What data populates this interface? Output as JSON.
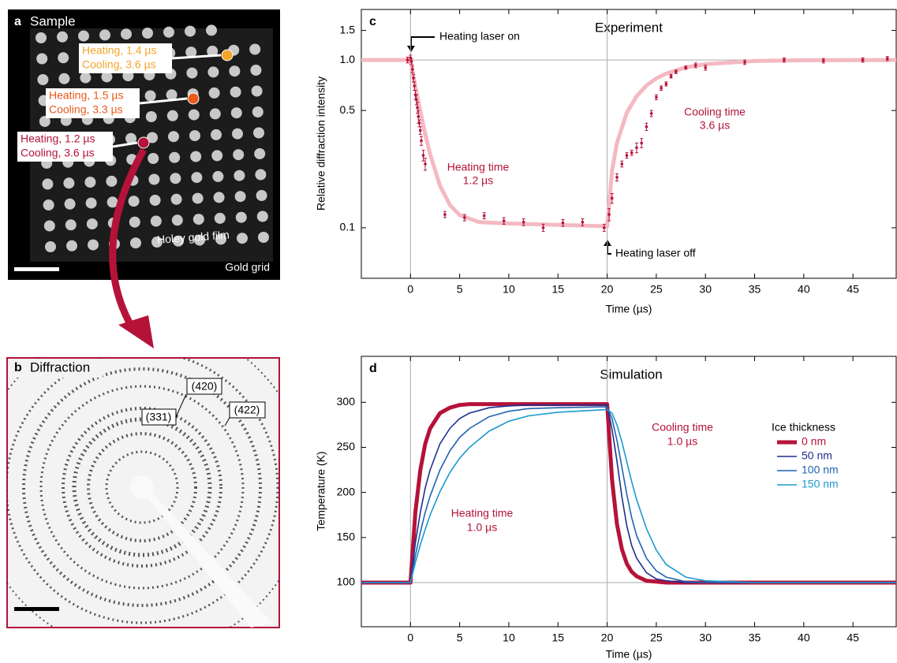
{
  "panels": {
    "a": {
      "letter": "a",
      "title": "Sample",
      "callouts": [
        {
          "lines": [
            "Heating, 1.4 µs",
            "Cooling, 3.6 µs"
          ],
          "color": "#f4a52a"
        },
        {
          "lines": [
            "Heating, 1.5 µs",
            "Cooling, 3.3 µs"
          ],
          "color": "#ea5a1a"
        },
        {
          "lines": [
            "Heating, 1.2 µs",
            "Cooling, 3.6 µs"
          ],
          "color": "#b5123a"
        }
      ],
      "labels": [
        "Holey gold film",
        "Gold grid"
      ]
    },
    "b": {
      "letter": "b",
      "title": "Diffraction",
      "labels": [
        "(420)",
        "(331)",
        "(422)"
      ]
    }
  },
  "chart_data": [
    {
      "type": "scatter",
      "letter": "c",
      "title": "Experiment",
      "xlabel": "Time (µs)",
      "ylabel": "Relative diffraction intensity",
      "xlim": [
        -5,
        49.4
      ],
      "xticks": [
        0,
        5,
        10,
        15,
        20,
        25,
        30,
        35,
        40,
        45
      ],
      "ylim": [
        0.05,
        2.0
      ],
      "yscale": "log",
      "yticks": [
        0.1,
        0.5,
        {
          "value": 1,
          "label": "1.0"
        },
        1.5
      ],
      "vlines": [
        0,
        20
      ],
      "hlines": [
        1
      ],
      "annotations": [
        "Heating laser on",
        "Heating laser off",
        "Heating time",
        "1.2 µs",
        "Cooling time",
        "3.6 µs"
      ],
      "series": [
        {
          "type": "line",
          "color": "#f4b9c2",
          "linewidth": 5,
          "x": [
            -5,
            0,
            0.5,
            1,
            1.5,
            2,
            3,
            4,
            5,
            7,
            10,
            15,
            20,
            20.5,
            21,
            22,
            23,
            24,
            25,
            26,
            28,
            30,
            35,
            40,
            49.4
          ],
          "values": [
            1,
            1,
            0.695,
            0.494,
            0.362,
            0.274,
            0.178,
            0.137,
            0.119,
            0.108,
            0.106,
            0.104,
            0.102,
            0.219,
            0.32,
            0.485,
            0.609,
            0.705,
            0.776,
            0.83,
            0.903,
            0.944,
            0.986,
            0.996,
            1.0
          ]
        },
        {
          "type": "scatter",
          "color": "#b5123a",
          "x": [
            -0.3,
            0,
            0.1,
            0.2,
            0.3,
            0.4,
            0.5,
            0.6,
            0.7,
            0.8,
            0.9,
            1.0,
            1.1,
            1.3,
            1.5,
            3.5,
            5.5,
            7.5,
            9.5,
            11.5,
            13.5,
            15.5,
            17.5,
            19.7,
            20.2,
            20.5,
            21,
            21.5,
            22,
            22.5,
            23,
            23.5,
            24,
            24.5,
            25,
            25.5,
            26,
            26.5,
            27,
            28,
            29,
            30,
            34,
            38,
            42,
            46,
            48.5
          ],
          "values": [
            1.0,
            1.03,
            0.98,
            0.88,
            0.78,
            0.7,
            0.62,
            0.58,
            0.52,
            0.46,
            0.42,
            0.38,
            0.33,
            0.27,
            0.24,
            0.12,
            0.115,
            0.118,
            0.11,
            0.108,
            0.1,
            0.107,
            0.108,
            0.1,
            0.12,
            0.15,
            0.2,
            0.24,
            0.27,
            0.28,
            0.3,
            0.32,
            0.4,
            0.48,
            0.6,
            0.68,
            0.72,
            0.8,
            0.85,
            0.9,
            0.93,
            0.9,
            0.97,
            1.0,
            0.99,
            1.0,
            1.02
          ],
          "errors": [
            0.04,
            0.04,
            0.04,
            0.04,
            0.04,
            0.04,
            0.04,
            0.04,
            0.04,
            0.04,
            0.02,
            0.02,
            0.02,
            0.02,
            0.02,
            0.005,
            0.005,
            0.005,
            0.005,
            0.005,
            0.005,
            0.005,
            0.005,
            0.005,
            0.01,
            0.01,
            0.01,
            0.01,
            0.01,
            0.01,
            0.02,
            0.02,
            0.02,
            0.02,
            0.02,
            0.02,
            0.02,
            0.02,
            0.02,
            0.02,
            0.03,
            0.03,
            0.03,
            0.03,
            0.03,
            0.03,
            0.03
          ]
        }
      ]
    },
    {
      "type": "line",
      "letter": "d",
      "title": "Simulation",
      "xlabel": "Time (µs)",
      "ylabel": "Temperature (K)",
      "xlim": [
        -5,
        49.4
      ],
      "xticks": [
        0,
        5,
        10,
        15,
        20,
        25,
        30,
        35,
        40,
        45
      ],
      "ylim": [
        51,
        351
      ],
      "yticks": [
        100,
        150,
        200,
        250,
        300
      ],
      "vlines": [
        0,
        20
      ],
      "hlines": [
        100
      ],
      "legend_title": "Ice thickness",
      "annotations": [
        "Cooling time",
        "1.0 µs",
        "Heating time",
        "1.0 µs"
      ],
      "x": [
        -5,
        0,
        0.5,
        1,
        1.5,
        2,
        3,
        4,
        5,
        6,
        8,
        10,
        12,
        15,
        20,
        20.5,
        21,
        21.5,
        22,
        22.5,
        23,
        24,
        25,
        26,
        28,
        30,
        35,
        40,
        49.4
      ],
      "series": [
        {
          "name": "0 nm",
          "color": "#b5123a",
          "linewidth": 5,
          "values": [
            100,
            100,
            178,
            225,
            254,
            271,
            288,
            294,
            297,
            298,
            298,
            298,
            298,
            298,
            298,
            214,
            165,
            137,
            121,
            112,
            107,
            102,
            101,
            100,
            100,
            100,
            100,
            100,
            100
          ]
        },
        {
          "name": "50 nm",
          "color": "#1f2f8f",
          "linewidth": 1.6,
          "values": [
            100,
            100,
            144,
            178,
            205,
            225,
            254,
            271,
            282,
            288,
            294,
            296,
            297,
            297,
            297,
            270,
            235,
            195,
            163,
            141,
            127,
            111,
            104,
            102,
            100,
            100,
            100,
            100,
            100
          ]
        },
        {
          "name": "100 nm",
          "color": "#1f64b0",
          "linewidth": 1.6,
          "values": [
            100,
            100,
            130,
            156,
            178,
            196,
            225,
            246,
            261,
            271,
            284,
            290,
            293,
            294,
            295,
            282,
            258,
            228,
            198,
            172,
            152,
            127,
            113,
            106,
            101,
            100,
            100,
            100,
            100
          ]
        },
        {
          "name": "150 nm",
          "color": "#1a9ad0",
          "linewidth": 1.6,
          "values": [
            100,
            100,
            122,
            142,
            159,
            175,
            201,
            222,
            238,
            250,
            268,
            279,
            285,
            289,
            292,
            288,
            275,
            256,
            234,
            212,
            192,
            160,
            136,
            120,
            106,
            102,
            100,
            100,
            100
          ]
        }
      ]
    }
  ]
}
